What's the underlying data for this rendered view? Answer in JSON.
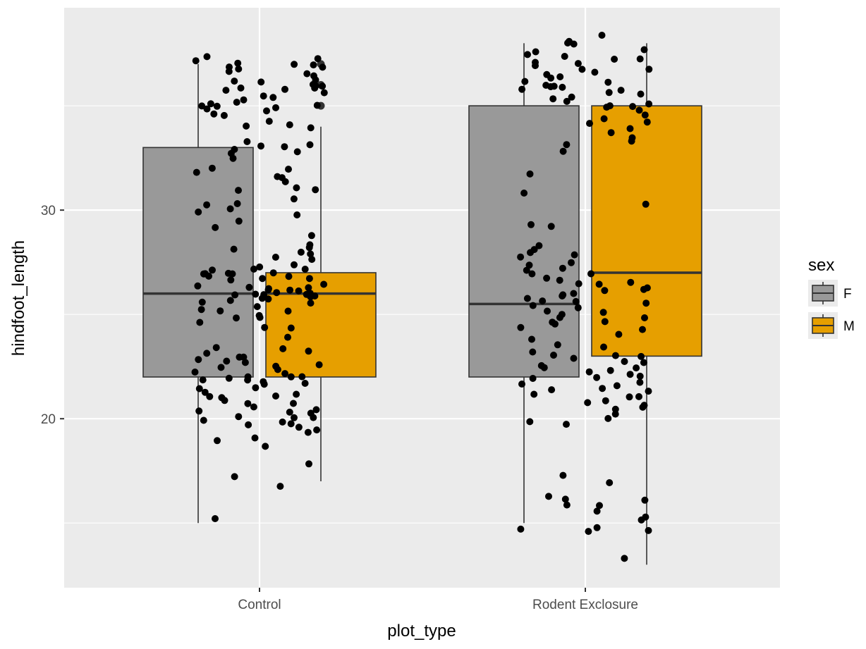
{
  "chart_data": {
    "type": "box",
    "title": "",
    "xlabel": "plot_type",
    "ylabel": "hindfoot_length",
    "categories": [
      "Control",
      "Rodent Exclosure"
    ],
    "ylim": [
      11.9,
      39.7
    ],
    "y_ticks": [
      20,
      30
    ],
    "grid": true,
    "legend": {
      "title": "sex",
      "position": "right",
      "entries": [
        {
          "label": "F",
          "color": "#999999"
        },
        {
          "label": "M",
          "color": "#E69F00"
        }
      ]
    },
    "series": [
      {
        "name": "F",
        "color": "#999999",
        "boxes": [
          {
            "category": "Control",
            "lower_whisker": 15,
            "q1": 22,
            "median": 26,
            "q3": 33,
            "upper_whisker": 37,
            "outliers": []
          },
          {
            "category": "Rodent Exclosure",
            "lower_whisker": 15,
            "q1": 22,
            "median": 25.5,
            "q3": 35,
            "upper_whisker": 38,
            "outliers": []
          }
        ]
      },
      {
        "name": "M",
        "color": "#E69F00",
        "boxes": [
          {
            "category": "Control",
            "lower_whisker": 17,
            "q1": 22,
            "median": 26,
            "q3": 27,
            "upper_whisker": 34,
            "outliers": [
              35,
              36,
              37
            ]
          },
          {
            "category": "Rodent Exclosure",
            "lower_whisker": 13,
            "q1": 23,
            "median": 27,
            "q3": 35,
            "upper_whisker": 38,
            "outliers": []
          }
        ]
      }
    ],
    "jitter_points": {
      "color": "#000000",
      "groups": [
        {
          "category": "Control",
          "spread": 0.2,
          "values": [
            37.4,
            37.2,
            37.1,
            37,
            37,
            37,
            36.9,
            36.8,
            36.7,
            36.6,
            36.5,
            36.4,
            36.3,
            36.2,
            36.1,
            36,
            36,
            35.9,
            35.9,
            35.8,
            35.8,
            35.7,
            35.6,
            35.5,
            35.4,
            35.3,
            35.2,
            35.1,
            35,
            35,
            35,
            34.9,
            34.8,
            34.7,
            34.6,
            34.5,
            34.2,
            34.1,
            34,
            33.9,
            33.3,
            33.2,
            33.1,
            33,
            32.9,
            32.8,
            32.7,
            32.5,
            32,
            31.9,
            31.8,
            31.6,
            31.5,
            31.3,
            31.1,
            31,
            30.9,
            30.6,
            30.3,
            30.2,
            30.1,
            29.9,
            29.8,
            29.5,
            29.1,
            28.8,
            28.3,
            28.2,
            28.1,
            28,
            27.9,
            27.8,
            27.6,
            27.4,
            27.3,
            27.2,
            27.1,
            27.1,
            27,
            27,
            27,
            26.9,
            26.9,
            26.8,
            26.8,
            26.7,
            26.7,
            26.6,
            26.5,
            26.4,
            26.3,
            26.3,
            26.2,
            26.2,
            26.1,
            26.1,
            26,
            26,
            26,
            26,
            26,
            25.9,
            25.9,
            25.8,
            25.8,
            25.7,
            25.7,
            25.6,
            25.5,
            25.4,
            25.3,
            25.2,
            25.1,
            25,
            24.9,
            24.8,
            24.6,
            24.4,
            24.3,
            23.9,
            23.4,
            23.3,
            23.2,
            23.1,
            23,
            23,
            22.9,
            22.8,
            22.7,
            22.6,
            22.5,
            22.4,
            22.3,
            22.2,
            22.1,
            22,
            22,
            22,
            21.9,
            21.9,
            21.8,
            21.8,
            21.7,
            21.6,
            21.5,
            21.4,
            21.3,
            21.2,
            21.1,
            21,
            21,
            20.9,
            20.8,
            20.7,
            20.6,
            20.5,
            20.4,
            20.3,
            20.2,
            20.1,
            20,
            20,
            19.9,
            19.9,
            19.8,
            19.7,
            19.6,
            19.5,
            19.3,
            19.1,
            18.9,
            18.7,
            17.9,
            17.2,
            16.7,
            15.2
          ]
        },
        {
          "category": "Rodent Exclosure",
          "spread": 0.2,
          "values": [
            38.4,
            38.1,
            38,
            37.9,
            37.7,
            37.6,
            37.5,
            37.4,
            37.3,
            37.2,
            37.1,
            37,
            36.9,
            36.8,
            36.7,
            36.6,
            36.5,
            36.4,
            36.3,
            36.2,
            36.1,
            36,
            36,
            35.9,
            35.9,
            35.8,
            35.7,
            35.6,
            35.5,
            35.4,
            35.3,
            35.2,
            35.1,
            35,
            35,
            34.9,
            34.8,
            34.6,
            34.4,
            34.2,
            34.1,
            33.9,
            33.7,
            33.5,
            33.3,
            33.1,
            32.8,
            31.7,
            30.8,
            30.3,
            29.3,
            29.2,
            28.3,
            28.1,
            28,
            27.9,
            27.7,
            27.5,
            27.3,
            27.2,
            27.1,
            27,
            26.9,
            26.8,
            26.7,
            26.6,
            26.5,
            26.4,
            26.3,
            26.2,
            26.1,
            26,
            26,
            25.9,
            25.8,
            25.7,
            25.6,
            25.5,
            25.4,
            25.3,
            25.2,
            25.1,
            25,
            24.9,
            24.8,
            24.7,
            24.6,
            24.5,
            24.4,
            24.3,
            24.1,
            23.8,
            23.6,
            23.4,
            23.2,
            23.1,
            23,
            23,
            22.9,
            22.8,
            22.7,
            22.6,
            22.5,
            22.4,
            22.3,
            22.2,
            22.1,
            22,
            22,
            21.9,
            21.8,
            21.7,
            21.6,
            21.5,
            21.4,
            21.3,
            21.2,
            21.1,
            21,
            20.9,
            20.8,
            20.7,
            20.6,
            20.4,
            20.2,
            20,
            19.9,
            19.7,
            17.3,
            16.9,
            16.3,
            16.2,
            16.1,
            15.9,
            15.8,
            15.6,
            15.3,
            15.1,
            14.8,
            14.7,
            14.6,
            14.6,
            13.3
          ]
        }
      ]
    }
  }
}
